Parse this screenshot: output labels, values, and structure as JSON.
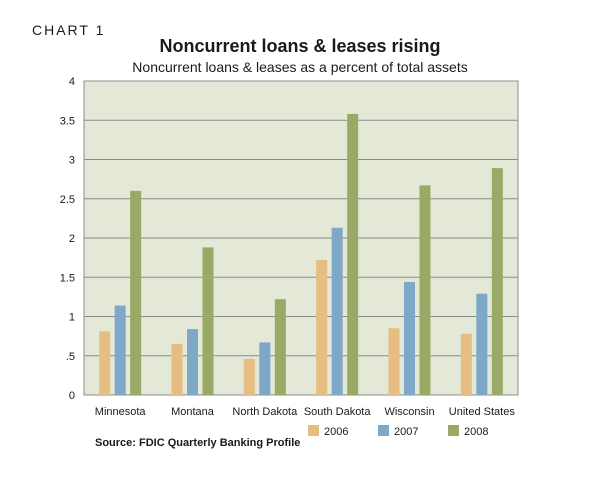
{
  "header": {
    "label": "CHART 1",
    "title": "Noncurrent loans & leases rising",
    "subtitle": "Noncurrent loans & leases as a percent of total assets"
  },
  "source": "Source: FDIC Quarterly Banking Profile",
  "chart_data": {
    "type": "bar",
    "title": "Noncurrent loans & leases rising",
    "subtitle": "Noncurrent loans & leases as a percent of total assets",
    "categories": [
      "Minnesota",
      "Montana",
      "North Dakota",
      "South Dakota",
      "Wisconsin",
      "United States"
    ],
    "series": [
      {
        "name": "2006",
        "color": "#e6bd82",
        "values": [
          0.81,
          0.65,
          0.46,
          1.72,
          0.85,
          0.78
        ]
      },
      {
        "name": "2007",
        "color": "#7ea8c8",
        "values": [
          1.14,
          0.84,
          0.67,
          2.13,
          1.44,
          1.29
        ]
      },
      {
        "name": "2008",
        "color": "#98aa66",
        "values": [
          2.6,
          1.88,
          1.22,
          3.58,
          2.67,
          2.89
        ]
      }
    ],
    "ylim": [
      0,
      4
    ],
    "yticks": [
      "0",
      ".5",
      "1",
      "1.5",
      "2",
      "2.5",
      "3",
      "3.5",
      "4"
    ],
    "grid": true,
    "legend": "bottom-right",
    "plot_background": "#e3e8d7"
  }
}
